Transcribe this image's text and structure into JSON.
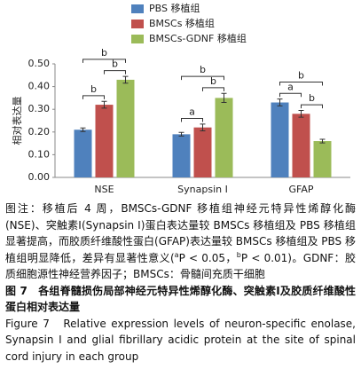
{
  "chart_data": {
    "type": "bar",
    "ylabel": "相对表达量",
    "categories": [
      "NSE",
      "Synapsin Ⅰ",
      "GFAP"
    ],
    "series": [
      {
        "name": "PBS 移植组",
        "color": "#4f81bd",
        "values": [
          0.21,
          0.19,
          0.33
        ],
        "errors": [
          0.008,
          0.008,
          0.015
        ]
      },
      {
        "name": "BMSCs 移植组",
        "color": "#c0504d",
        "values": [
          0.32,
          0.22,
          0.28
        ],
        "errors": [
          0.015,
          0.015,
          0.015
        ]
      },
      {
        "name": "BMSCs-GDNF 移植组",
        "color": "#9bbb59",
        "values": [
          0.43,
          0.35,
          0.16
        ],
        "errors": [
          0.015,
          0.02,
          0.008
        ]
      }
    ],
    "significance": [
      [
        "b",
        "b",
        "b"
      ],
      [
        "a",
        "b",
        "b"
      ],
      [
        "a",
        "b",
        "b"
      ]
    ],
    "ylim": [
      0,
      0.5
    ],
    "yticks": [
      {
        "value": 0,
        "label": "0.00"
      },
      {
        "value": 0.1,
        "label": "0.10"
      },
      {
        "value": 0.2,
        "label": "0.20"
      },
      {
        "value": 0.3,
        "label": "0.30"
      },
      {
        "value": 0.4,
        "label": "0.40"
      },
      {
        "value": 0.5,
        "label": "0.50"
      }
    ]
  },
  "caption": {
    "note": [
      "图注：移植后 4 周，BMSCs-GDNF 移植组神经元特异性烯醇化酶(NSE)、突触素Ⅰ(Synapsin Ⅰ)蛋白表达量较 BMSCs 移植组及 PBS 移植组显著提高，而胶质纤维酸性蛋白(GFAP)表达量较 BMSCs 移植组及 PBS 移植组明显降低，差异有显著性意义(",
      "a",
      "P < 0.05，",
      "b",
      "P < 0.01)。GDNF：胶质细胞源性神经营养因子；BMSCs：骨髓间充质干细胞"
    ],
    "title_cn": "图 7　各组脊髓损伤局部神经元特异性烯醇化酶、突触素Ⅰ及胶质纤维酸性蛋白相对表达量",
    "title_en": "Figure 7　Relative expression levels of neuron-specific enolase, Synapsin I and glial fibrillary acidic protein at the site of spinal cord injury in each group"
  }
}
